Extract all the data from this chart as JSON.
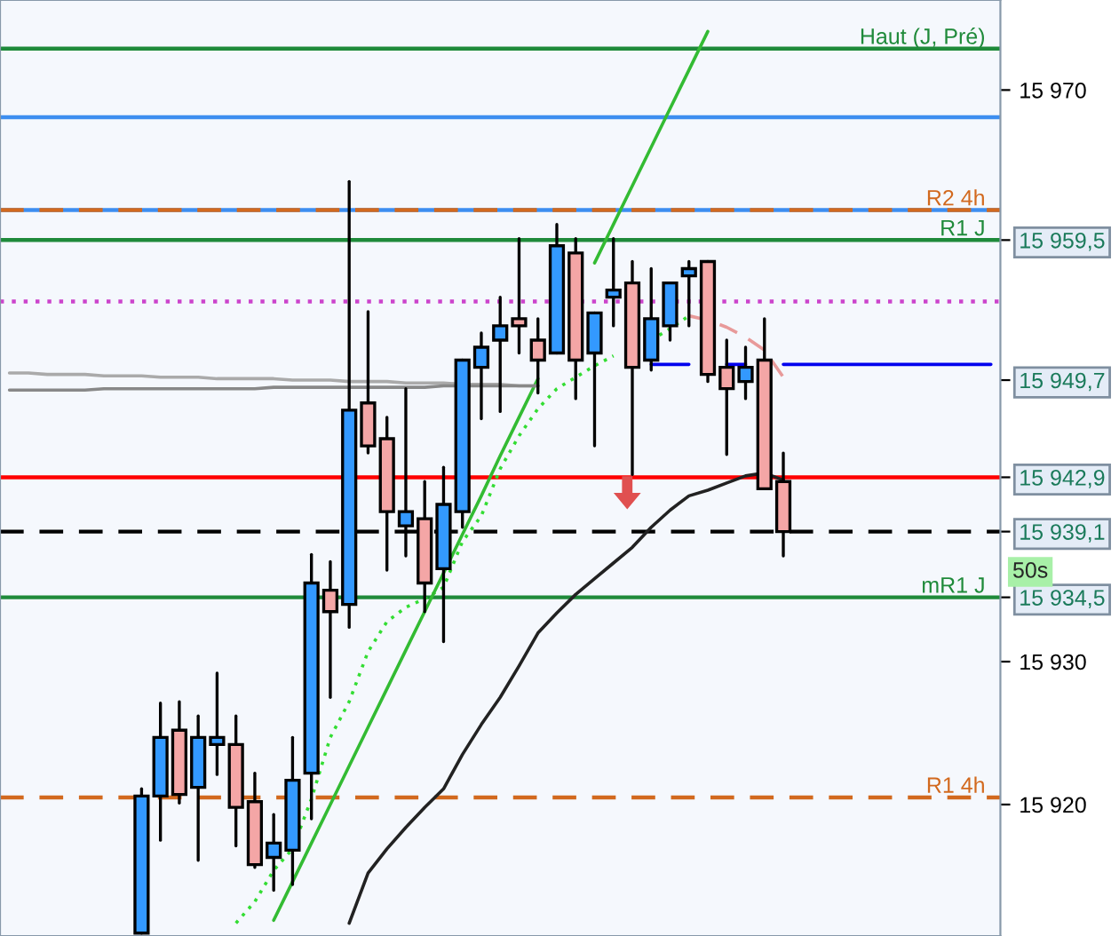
{
  "chart_data": {
    "type": "candlestick",
    "categories": [
      null,
      null,
      null,
      null,
      null,
      null,
      null,
      null,
      null,
      null,
      null,
      null,
      null,
      null,
      null,
      null,
      null,
      null,
      null,
      null,
      null,
      null,
      null,
      null,
      null,
      null,
      null,
      null,
      null,
      null,
      null,
      null,
      null,
      null,
      null,
      null,
      null,
      null,
      null,
      null,
      null,
      null,
      null,
      null,
      null,
      null,
      null,
      null,
      null,
      null,
      null,
      null,
      null
    ],
    "ohlc": [
      null,
      null,
      null,
      null,
      null,
      null,
      null,
      [
        15911,
        15921.1,
        15911,
        15920.6
      ],
      [
        15920.6,
        15927.1,
        15917.5,
        15924.7
      ],
      [
        15925.2,
        15927.2,
        15920.1,
        15920.7
      ],
      [
        15921.2,
        15926.2,
        15916.1,
        15924.7
      ],
      [
        15924.2,
        15929.2,
        15922.1,
        15924.7
      ],
      [
        15924.2,
        15926.2,
        15917.1,
        15919.8
      ],
      [
        15920.2,
        15922.2,
        15915.6,
        15915.8
      ],
      [
        15916.3,
        15919.3,
        15914.0,
        15917.3
      ],
      [
        15916.8,
        15924.7,
        15914.4,
        15921.7
      ],
      [
        15922.2,
        15937.5,
        15919.0,
        15935.5
      ],
      [
        15935.0,
        15937.0,
        15927.5,
        15933.5
      ],
      [
        15934.0,
        15963.6,
        15932.4,
        15947.6
      ],
      [
        15948.1,
        15954.5,
        15944.6,
        15945.1
      ],
      [
        15945.6,
        15947.1,
        15936.4,
        15940.5
      ],
      [
        15939.5,
        15949.1,
        15937.4,
        15940.5
      ],
      [
        15940.0,
        15942.6,
        15933.5,
        15935.5
      ],
      [
        15936.5,
        15943.6,
        15931.4,
        15941.0
      ],
      [
        15940.5,
        15951.1,
        15939.4,
        15951.1
      ],
      [
        15950.6,
        15953.0,
        15947.0,
        15952.0
      ],
      [
        15952.5,
        15955.5,
        15947.5,
        15953.5
      ],
      [
        15954.0,
        15959.6,
        15951.6,
        15953.5
      ],
      [
        15952.5,
        15954.0,
        15948.8,
        15951.1
      ],
      [
        15951.6,
        15960.6,
        15951.6,
        15959.1
      ],
      [
        15958.6,
        15959.6,
        15948.4,
        15951.1
      ],
      [
        15951.6,
        15954.4,
        15945.1,
        15954.4
      ],
      [
        15955.5,
        15959.6,
        15953.5,
        15956.0
      ],
      [
        15956.5,
        15958.0,
        15943.1,
        15950.6
      ],
      [
        15951.1,
        15957.5,
        15950.4,
        15954.0
      ],
      [
        15953.5,
        15956.5,
        15952.5,
        15956.5
      ],
      [
        15957.0,
        15958.0,
        15953.5,
        15957.5
      ],
      [
        15958.0,
        15958.0,
        15949.6,
        15950.1
      ],
      [
        15950.6,
        15952.5,
        15944.5,
        15949.1
      ],
      [
        15949.6,
        15952.0,
        15948.4,
        15950.6
      ],
      [
        15951.1,
        15954.0,
        15942.1,
        15942.1
      ],
      [
        15942.6,
        15944.6,
        15937.4,
        15939.1
      ],
      null,
      null,
      null,
      null,
      null,
      null,
      null,
      null,
      null,
      null,
      null
    ],
    "colors": [
      null,
      null,
      null,
      null,
      null,
      null,
      null,
      "#3399ff",
      "#3399ff",
      "#f4a6a6",
      "#3399ff",
      "#3399ff",
      "#f4a6a6",
      "#f4a6a6",
      "#3399ff",
      "#3399ff",
      "#3399ff",
      "#f4a6a6",
      "#3399ff",
      "#f4a6a6",
      "#f4a6a6",
      "#3399ff",
      "#f4a6a6",
      "#3399ff",
      "#3399ff",
      "#3399ff",
      "#3399ff",
      "#f4a6a6",
      "#f4a6a6",
      "#3399ff",
      "#f4a6a6",
      "#3399ff",
      "#3399ff",
      "#f4a6a6",
      "#3399ff",
      "#3399ff",
      "#3399ff",
      "#f4a6a6",
      "#f4a6a6",
      "#3399ff",
      "#f4a6a6",
      "#f4a6a6",
      null,
      null,
      null,
      null,
      null,
      null,
      null,
      null,
      null,
      null,
      null
    ],
    "series": [
      {
        "type": "line",
        "color": "#222222",
        "line_style": "solid",
        "values": [
          null,
          null,
          null,
          null,
          null,
          null,
          null,
          null,
          null,
          null,
          null,
          null,
          null,
          null,
          null,
          null,
          null,
          null,
          15911.7,
          15915.2,
          15916.9,
          15918.4,
          15919.8,
          15921.1,
          15923.5,
          15925.6,
          15927.5,
          15929.7,
          15932.0,
          15933.4,
          15934.7,
          15935.8,
          15936.9,
          15938.0,
          15939.4,
          15940.6,
          15941.6,
          15942.0,
          15942.5,
          15943.0,
          15943.2,
          15942.7,
          null,
          null,
          null,
          null,
          null,
          null,
          null,
          null,
          null,
          null,
          null
        ]
      },
      {
        "type": "line",
        "color": "#33dd33",
        "line_style": "dotted",
        "values": [
          null,
          null,
          null,
          null,
          null,
          null,
          null,
          null,
          null,
          null,
          null,
          null,
          15911.7,
          15913.2,
          15915.4,
          15916.9,
          15920.4,
          15924.7,
          15927.2,
          15930.7,
          15932.8,
          15933.8,
          15934.4,
          15935.2,
          15938.4,
          15940.2,
          15943.5,
          15945.8,
          15947.7,
          15949.1,
          15949.9,
          15950.7,
          15951.4,
          null,
          15952.5,
          15953.3,
          15954.2,
          null,
          null,
          null,
          null,
          null,
          null,
          null,
          null,
          null,
          null,
          null,
          null,
          null,
          null,
          null,
          null
        ]
      },
      {
        "type": "line",
        "color": "#e89a9a",
        "line_style": "dashed",
        "values": [
          null,
          null,
          null,
          null,
          null,
          null,
          null,
          null,
          null,
          null,
          null,
          null,
          null,
          null,
          null,
          null,
          null,
          null,
          null,
          null,
          null,
          null,
          null,
          null,
          null,
          null,
          null,
          null,
          null,
          null,
          null,
          null,
          null,
          null,
          null,
          null,
          15954.2,
          15953.9,
          15953.4,
          15952.7,
          15951.8,
          15949.9,
          null,
          null,
          null,
          null,
          null,
          null,
          null,
          null,
          null,
          null,
          null
        ]
      },
      {
        "type": "line",
        "color": "#33bb33",
        "line_style": "solid",
        "values": [
          null,
          null,
          null,
          null,
          null,
          null,
          null,
          null,
          null,
          null,
          null,
          null,
          null,
          null,
          15911.9,
          15914.6,
          15917.3,
          15920.0,
          15922.7,
          15925.4,
          15928.1,
          15930.8,
          15933.5,
          15936.2,
          15938.9,
          15941.6,
          15944.4,
          15947.1,
          15949.8,
          null,
          null,
          15957.9,
          15960.6,
          15963.3,
          15966.0,
          15968.7,
          15971.4,
          15974.1,
          null,
          null,
          null,
          null,
          null,
          null,
          null,
          null,
          null,
          null,
          null,
          null,
          null,
          null,
          null
        ]
      },
      {
        "type": "line",
        "color": "#aaaaaa",
        "line_style": "solid",
        "values": [
          15950.2,
          15950.2,
          15950.1,
          15950.1,
          15950.1,
          15950.0,
          15950.0,
          15950.0,
          15949.9,
          15949.9,
          15949.9,
          15949.8,
          15949.8,
          15949.8,
          15949.8,
          15949.7,
          15949.7,
          15949.7,
          15949.6,
          15949.6,
          15949.6,
          15949.5,
          15949.5,
          15949.5,
          15949.4,
          15949.4,
          15949.4,
          15949.3,
          15949.3,
          null,
          null,
          null,
          null,
          null,
          null,
          null,
          null,
          null,
          null,
          null,
          null,
          null,
          null,
          null,
          null,
          null,
          null,
          null,
          null,
          null,
          null,
          null,
          null
        ]
      },
      {
        "type": "line",
        "color": "#888888",
        "line_style": "solid",
        "values": [
          15949.0,
          15949.0,
          15949.0,
          15949.0,
          15949.0,
          15949.1,
          15949.1,
          15949.1,
          15949.1,
          15949.1,
          15949.1,
          15949.1,
          15949.1,
          15949.1,
          15949.2,
          15949.2,
          15949.2,
          15949.2,
          15949.2,
          15949.2,
          15949.2,
          15949.2,
          15949.2,
          15949.3,
          15949.3,
          15949.3,
          15949.3,
          15949.3,
          15949.3,
          null,
          null,
          null,
          null,
          null,
          null,
          null,
          null,
          null,
          null,
          null,
          null,
          null,
          null,
          null,
          null,
          null,
          null,
          null,
          null,
          null,
          null,
          null,
          null
        ]
      },
      {
        "type": "line",
        "color": "#0000ee",
        "line_style": "solid",
        "values": [
          null,
          null,
          null,
          null,
          null,
          null,
          null,
          null,
          null,
          null,
          null,
          null,
          null,
          null,
          null,
          null,
          null,
          null,
          null,
          null,
          null,
          null,
          null,
          null,
          null,
          null,
          null,
          null,
          null,
          null,
          null,
          null,
          null,
          null,
          15950.8,
          15950.8,
          15950.8,
          null,
          15950.8,
          15950.8,
          null,
          15950.8,
          15950.8,
          15950.8,
          15950.8,
          15950.8,
          15950.8,
          15950.8,
          15950.8,
          15950.8,
          15950.8,
          15950.8,
          15950.8
        ]
      }
    ],
    "ylim": [
      15910.8,
      15976.3
    ],
    "yticks": [
      {
        "value": 15920,
        "label": "15 920"
      },
      {
        "value": 15930,
        "label": "15 930"
      },
      {
        "value": 15934.5,
        "label": "15 934,5"
      },
      {
        "value": 15939.1,
        "label": "15 939,1"
      },
      {
        "value": 15942.9,
        "label": "15 942,9"
      },
      {
        "value": 15949.7,
        "label": "15 949,7"
      },
      {
        "value": 15959.5,
        "label": "15 959,5"
      },
      {
        "value": 15970,
        "label": "15 970"
      }
    ],
    "tick_labels": "y",
    "ref_lines": [
      {
        "axis": "y",
        "value": 15972.9,
        "label": "Haut (J, Pré)",
        "color": "#1f8a3a",
        "line_style": "solid"
      },
      {
        "axis": "y",
        "value": 15968.1,
        "color": "#3d8ef0",
        "line_style": "solid"
      },
      {
        "axis": "y",
        "value": 15961.6,
        "color": "#3d8ef0",
        "line_style": "solid"
      },
      {
        "axis": "y",
        "value": 15961.6,
        "label": "R2 4h",
        "color": "#d2691e",
        "line_style": "dashed"
      },
      {
        "axis": "y",
        "value": 15959.5,
        "label": "R1 J",
        "color": "#1f8a3a",
        "line_style": "solid"
      },
      {
        "axis": "y",
        "value": 15955.2,
        "color": "#cc44cc",
        "line_style": "dotted"
      },
      {
        "axis": "y",
        "value": 15942.9,
        "color": "#ff0000",
        "line_style": "solid"
      },
      {
        "axis": "y",
        "value": 15939.1,
        "color": "#000000",
        "line_style": "dashed"
      },
      {
        "axis": "y",
        "value": 15934.5,
        "label": "mR1 J",
        "color": "#1f8a3a",
        "line_style": "solid"
      },
      {
        "axis": "y",
        "value": 15920.5,
        "label": "R1 4h",
        "color": "#d2691e",
        "line_style": "dashed"
      }
    ],
    "annotations": [
      "50s"
    ],
    "grid": false,
    "legend": false
  }
}
